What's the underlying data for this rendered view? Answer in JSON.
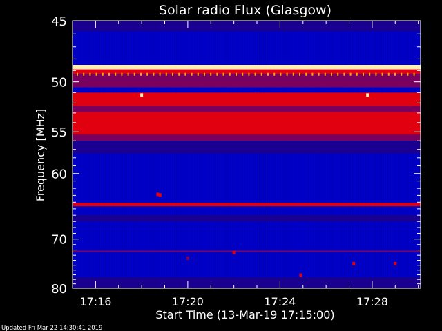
{
  "chart_data": {
    "type": "heatmap",
    "title": "Solar radio Flux (Glasgow)",
    "xlabel": "Start Time (13-Mar-19 17:15:00)",
    "ylabel": "Frequency [MHz]",
    "xlim_minutes": [
      15.0,
      30.1
    ],
    "ylim": [
      45,
      80
    ],
    "x_tick_labels": [
      "17:16",
      "17:20",
      "17:24",
      "17:28"
    ],
    "x_tick_minutes": [
      16,
      20,
      24,
      28
    ],
    "y_tick_labels": [
      "45",
      "50",
      "55",
      "60",
      "70",
      "80"
    ],
    "y_ticks": [
      45,
      50,
      55,
      60,
      70,
      80
    ],
    "y_minor_ticks": [
      46,
      47,
      48,
      49,
      51,
      52,
      53,
      54,
      56,
      57,
      58,
      59,
      61,
      62,
      63,
      64,
      65,
      66,
      67,
      68,
      69,
      71,
      72,
      73,
      74,
      75,
      76,
      77,
      78,
      79
    ],
    "colors": {
      "background": "#0000c8",
      "bright_band": "#fff0b0",
      "strong_band": "#e00010",
      "mid_band": "#7a0060",
      "dark_band": "#1a0090"
    },
    "bands": [
      {
        "f0": 45.0,
        "f1": 45.8,
        "level": "dark"
      },
      {
        "f0": 48.5,
        "f1": 48.9,
        "level": "bright"
      },
      {
        "f0": 48.9,
        "f1": 49.3,
        "level": "strong"
      },
      {
        "f0": 49.3,
        "f1": 50.5,
        "level": "mid"
      },
      {
        "f0": 51.0,
        "f1": 52.3,
        "level": "strong"
      },
      {
        "f0": 52.3,
        "f1": 52.9,
        "level": "mid"
      },
      {
        "f0": 52.9,
        "f1": 55.3,
        "level": "strong"
      },
      {
        "f0": 55.3,
        "f1": 56.0,
        "level": "mid"
      },
      {
        "f0": 56.0,
        "f1": 57.5,
        "level": "dark"
      },
      {
        "f0": 64.1,
        "f1": 64.6,
        "level": "strong"
      },
      {
        "f0": 66.0,
        "f1": 67.0,
        "level": "dark"
      },
      {
        "f0": 72.1,
        "f1": 72.4,
        "level": "mid"
      },
      {
        "f0": 77.5,
        "f1": 80.0,
        "level": "dark"
      }
    ],
    "bursts": [
      {
        "t": 18.0,
        "f": 51.2,
        "level": "bright"
      },
      {
        "t": 18.7,
        "f": 62.8,
        "level": "strong"
      },
      {
        "t": 18.8,
        "f": 62.9,
        "level": "strong"
      },
      {
        "t": 20.0,
        "f": 73.5,
        "level": "mid"
      },
      {
        "t": 22.0,
        "f": 72.4,
        "level": "strong"
      },
      {
        "t": 24.9,
        "f": 77.0,
        "level": "strong"
      },
      {
        "t": 27.2,
        "f": 74.6,
        "level": "strong"
      },
      {
        "t": 27.8,
        "f": 51.2,
        "level": "bright"
      },
      {
        "t": 29.0,
        "f": 74.6,
        "level": "strong"
      }
    ]
  },
  "footer": {
    "updated": "Updated Fri Mar 22 14:30:41 2019"
  }
}
